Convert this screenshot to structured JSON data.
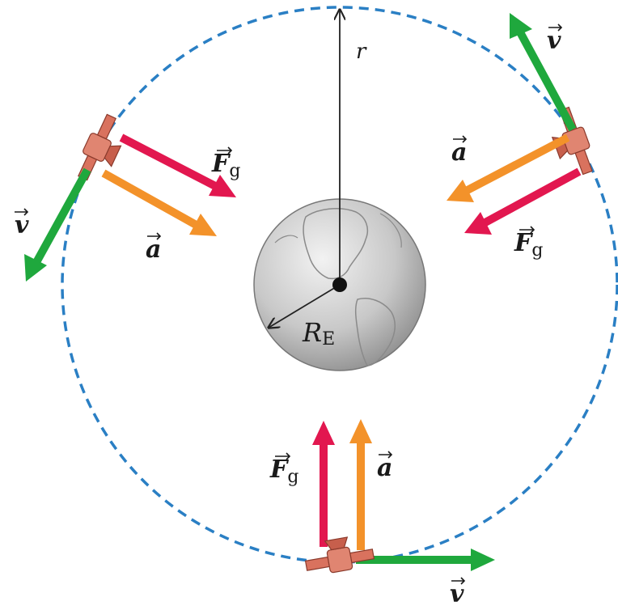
{
  "labels": {
    "r": "r",
    "earth_radius_main": "R",
    "earth_radius_sub": "E",
    "velocity": "v",
    "acceleration": "a",
    "force_main": "F",
    "force_sub": "g"
  },
  "colors": {
    "orbit": "#2a7fc4",
    "gravity_force": "#e2174f",
    "acceleration": "#f3922a",
    "velocity": "#1fa83d",
    "satellite": "#d9725e",
    "earth": "#bdbdbd",
    "line": "#222222"
  },
  "icons": {
    "satellite": "satellite-icon",
    "earth": "earth-globe-icon"
  }
}
